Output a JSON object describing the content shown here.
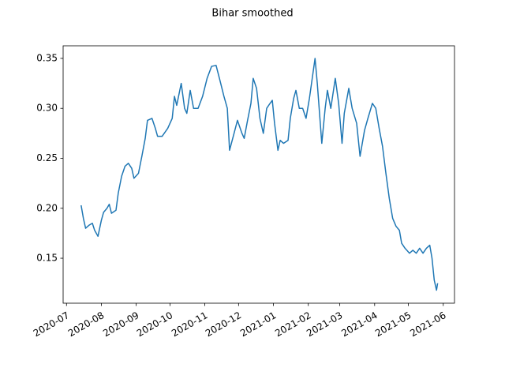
{
  "chart_data": {
    "type": "line",
    "title": "Bihar smoothed",
    "x": [
      "2020-07-14",
      "2020-07-16",
      "2020-07-18",
      "2020-07-21",
      "2020-07-24",
      "2020-07-26",
      "2020-07-29",
      "2020-08-01",
      "2020-08-03",
      "2020-08-06",
      "2020-08-08",
      "2020-08-10",
      "2020-08-14",
      "2020-08-16",
      "2020-08-19",
      "2020-08-22",
      "2020-08-25",
      "2020-08-28",
      "2020-08-30",
      "2020-09-03",
      "2020-09-06",
      "2020-09-09",
      "2020-09-11",
      "2020-09-15",
      "2020-09-18",
      "2020-09-20",
      "2020-09-24",
      "2020-09-29",
      "2020-10-03",
      "2020-10-05",
      "2020-10-07",
      "2020-10-11",
      "2020-10-14",
      "2020-10-16",
      "2020-10-19",
      "2020-10-22",
      "2020-10-26",
      "2020-10-30",
      "2020-11-03",
      "2020-11-07",
      "2020-11-11",
      "2020-11-14",
      "2020-11-18",
      "2020-11-21",
      "2020-11-23",
      "2020-11-27",
      "2020-11-30",
      "2020-12-04",
      "2020-12-06",
      "2020-12-09",
      "2020-12-12",
      "2020-12-14",
      "2020-12-17",
      "2020-12-20",
      "2020-12-23",
      "2020-12-26",
      "2020-12-29",
      "2020-12-31",
      "2021-01-02",
      "2021-01-05",
      "2021-01-07",
      "2021-01-10",
      "2021-01-14",
      "2021-01-16",
      "2021-01-19",
      "2021-01-21",
      "2021-01-24",
      "2021-01-27",
      "2021-01-30",
      "2021-02-02",
      "2021-02-07",
      "2021-02-09",
      "2021-02-13",
      "2021-02-16",
      "2021-02-18",
      "2021-02-21",
      "2021-02-25",
      "2021-02-28",
      "2021-03-03",
      "2021-03-05",
      "2021-03-09",
      "2021-03-12",
      "2021-03-16",
      "2021-03-19",
      "2021-03-23",
      "2021-03-26",
      "2021-03-30",
      "2021-04-02",
      "2021-04-05",
      "2021-04-08",
      "2021-04-11",
      "2021-04-14",
      "2021-04-17",
      "2021-04-20",
      "2021-04-23",
      "2021-04-25",
      "2021-04-28",
      "2021-05-02",
      "2021-05-05",
      "2021-05-08",
      "2021-05-11",
      "2021-05-14",
      "2021-05-17",
      "2021-05-20",
      "2021-05-22",
      "2021-05-24",
      "2021-05-26",
      "2021-05-27"
    ],
    "series": [
      {
        "color": "#1f77b4",
        "values": [
          0.203,
          0.19,
          0.18,
          0.183,
          0.185,
          0.178,
          0.172,
          0.188,
          0.196,
          0.2,
          0.204,
          0.195,
          0.198,
          0.215,
          0.232,
          0.242,
          0.245,
          0.24,
          0.23,
          0.235,
          0.252,
          0.27,
          0.288,
          0.29,
          0.28,
          0.272,
          0.272,
          0.28,
          0.29,
          0.312,
          0.303,
          0.325,
          0.3,
          0.295,
          0.318,
          0.3,
          0.3,
          0.312,
          0.33,
          0.342,
          0.343,
          0.33,
          0.312,
          0.3,
          0.258,
          0.275,
          0.288,
          0.275,
          0.27,
          0.288,
          0.305,
          0.33,
          0.32,
          0.29,
          0.275,
          0.3,
          0.305,
          0.308,
          0.285,
          0.258,
          0.268,
          0.265,
          0.268,
          0.29,
          0.31,
          0.318,
          0.3,
          0.3,
          0.29,
          0.31,
          0.35,
          0.325,
          0.265,
          0.3,
          0.318,
          0.3,
          0.33,
          0.305,
          0.265,
          0.295,
          0.32,
          0.3,
          0.285,
          0.252,
          0.278,
          0.29,
          0.305,
          0.3,
          0.28,
          0.262,
          0.235,
          0.21,
          0.19,
          0.182,
          0.178,
          0.165,
          0.16,
          0.155,
          0.158,
          0.155,
          0.16,
          0.155,
          0.16,
          0.163,
          0.15,
          0.128,
          0.118,
          0.125
        ]
      }
    ],
    "xlim": [
      "2020-06-28",
      "2021-06-11"
    ],
    "xticks": [
      "2020-07",
      "2020-08",
      "2020-09",
      "2020-10",
      "2020-11",
      "2020-12",
      "2021-01",
      "2021-02",
      "2021-03",
      "2021-04",
      "2021-05",
      "2021-06"
    ],
    "ylim": [
      0.105,
      0.3626
    ],
    "yticks": [
      0.15,
      {
        "value": 0.2,
        "label": "0.20"
      },
      0.25,
      {
        "value": 0.3,
        "label": "0.30"
      },
      0.35
    ],
    "grid": false
  }
}
